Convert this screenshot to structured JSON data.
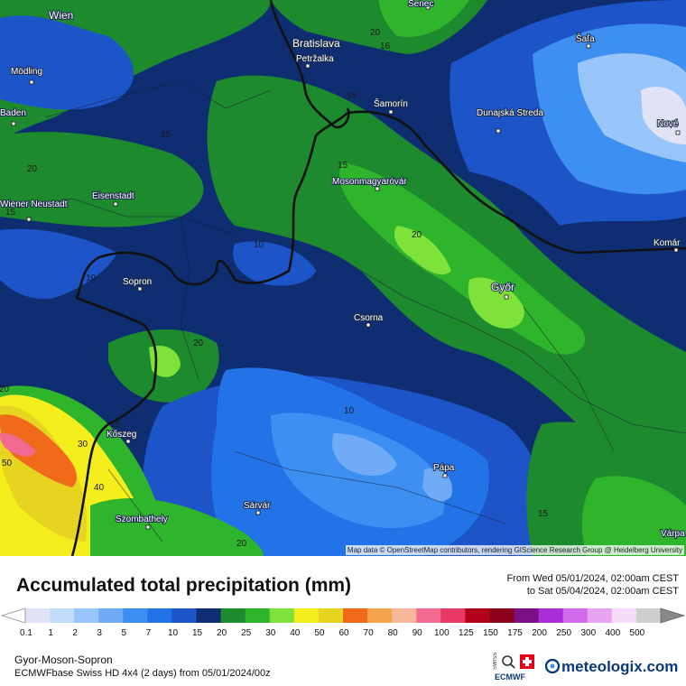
{
  "map": {
    "attribution": "Map data © OpenStreetMap contributors, rendering GIScience Research Group @ Heidelberg University",
    "places": [
      "Wien",
      "Senec",
      "Bratislava",
      "Petržalka",
      "Šaľa",
      "Mödling",
      "Baden",
      "Šamorín",
      "Dunajská Streda",
      "Nové",
      "Eisenstadt",
      "Wiener Neustadt",
      "Mosonmagyaróvár",
      "Komár",
      "Sopron",
      "Győr",
      "Csorna",
      "Kőszeg",
      "Pápa",
      "Sárvár",
      "Szombathely",
      "Várpa"
    ],
    "contour_labels": [
      "20",
      "16",
      "15",
      "15",
      "15",
      "20",
      "15",
      "20",
      "10",
      "10",
      "20",
      "20",
      "15",
      "30",
      "50",
      "40",
      "10",
      "15",
      "20"
    ]
  },
  "legend": {
    "title": "Accumulated total precipitation (mm)",
    "period_from": "From Wed 05/01/2024, 02:00am CEST",
    "period_to": "to Sat 05/04/2024, 02:00am CEST",
    "levels": [
      "0.1",
      "1",
      "2",
      "3",
      "5",
      "7",
      "10",
      "15",
      "20",
      "25",
      "30",
      "40",
      "50",
      "60",
      "70",
      "80",
      "90",
      "100",
      "125",
      "150",
      "175",
      "200",
      "250",
      "300",
      "400",
      "500"
    ],
    "colors": [
      "#dfe3f5",
      "#c3dbfb",
      "#98c6fa",
      "#6fabf6",
      "#3d8ff2",
      "#2272e8",
      "#1d55c8",
      "#0f2e72",
      "#1d8a2e",
      "#2fb52b",
      "#7fe23a",
      "#f4ee1c",
      "#e7d420",
      "#f06a1a",
      "#f5a34a",
      "#f7b79a",
      "#f26a8f",
      "#e83866",
      "#b2001a",
      "#8a0018",
      "#7a0f86",
      "#a92ed8",
      "#d06ae8",
      "#e8a4f2",
      "#f6dcf7",
      "#cfcfcf"
    ]
  },
  "footer": {
    "region": "Gyor-Moson-Sopron",
    "model": "ECMWFbase Swiss HD 4x4 (2 days) from 05/01/2024/00z",
    "brand": "meteologix.com",
    "badge": "SWISS HD ECMWF base"
  }
}
